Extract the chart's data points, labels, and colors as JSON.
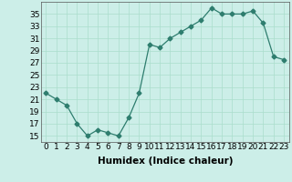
{
  "xlabel": "Humidex (Indice chaleur)",
  "x": [
    0,
    1,
    2,
    3,
    4,
    5,
    6,
    7,
    8,
    9,
    10,
    11,
    12,
    13,
    14,
    15,
    16,
    17,
    18,
    19,
    20,
    21,
    22,
    23
  ],
  "y": [
    22,
    21,
    20,
    17,
    15,
    16,
    15.5,
    15,
    18,
    22,
    30,
    29.5,
    31,
    32,
    33,
    34,
    36,
    35,
    35,
    35,
    35.5,
    33.5,
    28,
    27.5
  ],
  "line_color": "#2e7d6e",
  "marker": "D",
  "marker_size": 2.5,
  "bg_color": "#cceee8",
  "grid_color": "#aaddcc",
  "ylim": [
    14,
    37
  ],
  "yticks": [
    15,
    17,
    19,
    21,
    23,
    25,
    27,
    29,
    31,
    33,
    35
  ],
  "xlim": [
    -0.5,
    23.5
  ],
  "tick_fontsize": 6.5,
  "label_fontsize": 7.5
}
